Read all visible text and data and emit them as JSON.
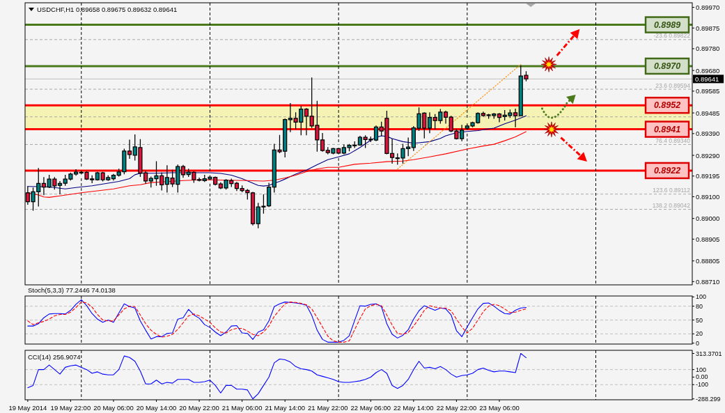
{
  "chart_data": [
    {
      "type": "candlestick",
      "title": "USDCHF,H1 0.89658 0.89675 0.89632 0.89641",
      "x": [
        "2014-05-19T14:00",
        "2014-05-19T15:00",
        "2014-05-19T16:00",
        "2014-05-19T17:00",
        "2014-05-19T18:00",
        "2014-05-19T19:00",
        "2014-05-19T20:00",
        "2014-05-19T21:00",
        "2014-05-19T22:00",
        "2014-05-19T23:00",
        "2014-05-20T00:00",
        "2014-05-20T01:00",
        "2014-05-20T02:00",
        "2014-05-20T03:00",
        "2014-05-20T04:00",
        "2014-05-20T05:00",
        "2014-05-20T06:00",
        "2014-05-20T07:00",
        "2014-05-20T08:00",
        "2014-05-20T09:00",
        "2014-05-20T10:00",
        "2014-05-20T11:00",
        "2014-05-20T12:00",
        "2014-05-20T13:00",
        "2014-05-20T14:00",
        "2014-05-20T15:00",
        "2014-05-20T16:00",
        "2014-05-20T17:00",
        "2014-05-20T18:00",
        "2014-05-20T19:00",
        "2014-05-20T20:00",
        "2014-05-20T21:00",
        "2014-05-20T22:00",
        "2014-05-20T23:00",
        "2014-05-21T00:00",
        "2014-05-21T01:00",
        "2014-05-21T02:00",
        "2014-05-21T03:00",
        "2014-05-21T04:00",
        "2014-05-21T05:00",
        "2014-05-21T06:00",
        "2014-05-21T07:00",
        "2014-05-21T08:00",
        "2014-05-21T09:00",
        "2014-05-21T10:00",
        "2014-05-21T11:00",
        "2014-05-21T12:00",
        "2014-05-21T13:00",
        "2014-05-21T14:00",
        "2014-05-21T15:00",
        "2014-05-21T16:00",
        "2014-05-21T17:00",
        "2014-05-21T18:00",
        "2014-05-21T19:00",
        "2014-05-21T20:00",
        "2014-05-21T21:00",
        "2014-05-21T22:00",
        "2014-05-21T23:00",
        "2014-05-22T00:00",
        "2014-05-22T01:00",
        "2014-05-22T02:00",
        "2014-05-22T03:00",
        "2014-05-22T04:00",
        "2014-05-22T05:00",
        "2014-05-22T06:00",
        "2014-05-22T07:00",
        "2014-05-22T08:00",
        "2014-05-22T09:00",
        "2014-05-22T10:00",
        "2014-05-22T11:00",
        "2014-05-22T12:00",
        "2014-05-22T13:00",
        "2014-05-22T14:00",
        "2014-05-22T15:00",
        "2014-05-22T16:00",
        "2014-05-22T17:00",
        "2014-05-22T18:00",
        "2014-05-22T19:00",
        "2014-05-22T20:00",
        "2014-05-22T21:00",
        "2014-05-22T22:00",
        "2014-05-22T23:00",
        "2014-05-23T00:00",
        "2014-05-23T01:00",
        "2014-05-23T02:00",
        "2014-05-23T03:00",
        "2014-05-23T04:00",
        "2014-05-23T05:00",
        "2014-05-23T06:00",
        "2014-05-23T07:00",
        "2014-05-23T08:00",
        "2014-05-23T09:00",
        "2014-05-23T10:00",
        "2014-05-23T11:00"
      ],
      "ohlc": [
        [
          0.89118,
          0.89147,
          0.89065,
          0.89077
        ],
        [
          0.89077,
          0.8914,
          0.89038,
          0.89123
        ],
        [
          0.89123,
          0.8923,
          0.89057,
          0.89161
        ],
        [
          0.89161,
          0.89188,
          0.89109,
          0.89144
        ],
        [
          0.89144,
          0.89199,
          0.89142,
          0.89181
        ],
        [
          0.89181,
          0.89188,
          0.89135,
          0.8915
        ],
        [
          0.89152,
          0.8917,
          0.89113,
          0.89161
        ],
        [
          0.89162,
          0.89199,
          0.89152,
          0.89181
        ],
        [
          0.89181,
          0.89208,
          0.89176,
          0.89204
        ],
        [
          0.89204,
          0.89224,
          0.89199,
          0.89213
        ],
        [
          0.89211,
          0.89218,
          0.89204,
          0.89212
        ],
        [
          0.89212,
          0.89215,
          0.89179,
          0.89181
        ],
        [
          0.89182,
          0.89196,
          0.89164,
          0.89178
        ],
        [
          0.89178,
          0.89212,
          0.89176,
          0.8921
        ],
        [
          0.8921,
          0.89212,
          0.89172,
          0.89178
        ],
        [
          0.89178,
          0.89196,
          0.89175,
          0.89188
        ],
        [
          0.89183,
          0.89203,
          0.89176,
          0.89199
        ],
        [
          0.89199,
          0.89227,
          0.89195,
          0.89214
        ],
        [
          0.89215,
          0.89319,
          0.89205,
          0.8931
        ],
        [
          0.8931,
          0.8936,
          0.89276,
          0.89294
        ],
        [
          0.89291,
          0.89384,
          0.89268,
          0.89329
        ],
        [
          0.89326,
          0.89363,
          0.89193,
          0.89208
        ],
        [
          0.8921,
          0.89217,
          0.89162,
          0.89172
        ],
        [
          0.89172,
          0.89191,
          0.89144,
          0.89184
        ],
        [
          0.89183,
          0.89261,
          0.89152,
          0.89196
        ],
        [
          0.89196,
          0.8921,
          0.89131,
          0.89155
        ],
        [
          0.89157,
          0.89243,
          0.89121,
          0.89188
        ],
        [
          0.89186,
          0.89222,
          0.89147,
          0.89159
        ],
        [
          0.89157,
          0.89246,
          0.89121,
          0.89239
        ],
        [
          0.89239,
          0.89244,
          0.89189,
          0.89201
        ],
        [
          0.89202,
          0.89227,
          0.89193,
          0.89213
        ],
        [
          0.89212,
          0.89215,
          0.89166,
          0.89179
        ],
        [
          0.89179,
          0.89186,
          0.89172,
          0.89178
        ],
        [
          0.89174,
          0.89199,
          0.8917,
          0.89183
        ],
        [
          0.89182,
          0.89196,
          0.89179,
          0.8919
        ],
        [
          0.89189,
          0.89191,
          0.89154,
          0.89157
        ],
        [
          0.89159,
          0.89164,
          0.89137,
          0.8914
        ],
        [
          0.8914,
          0.89179,
          0.89135,
          0.89176
        ],
        [
          0.89174,
          0.89181,
          0.89147,
          0.8916
        ],
        [
          0.89162,
          0.89166,
          0.89128,
          0.89138
        ],
        [
          0.89138,
          0.8915,
          0.89123,
          0.89128
        ],
        [
          0.89129,
          0.89133,
          0.89089,
          0.89119
        ],
        [
          0.89118,
          0.8912,
          0.8897,
          0.88976
        ],
        [
          0.88976,
          0.8907,
          0.88957,
          0.89053
        ],
        [
          0.89054,
          0.89109,
          0.89024,
          0.89056
        ],
        [
          0.89058,
          0.89162,
          0.89055,
          0.89144
        ],
        [
          0.89144,
          0.89341,
          0.89121,
          0.89315
        ],
        [
          0.89315,
          0.89382,
          0.89302,
          0.89307
        ],
        [
          0.89309,
          0.89457,
          0.89283,
          0.89455
        ],
        [
          0.89454,
          0.89528,
          0.89399,
          0.8946
        ],
        [
          0.8946,
          0.89486,
          0.89413,
          0.89443
        ],
        [
          0.89443,
          0.89515,
          0.89384,
          0.89503
        ],
        [
          0.89503,
          0.89505,
          0.89384,
          0.8947
        ],
        [
          0.8947,
          0.89646,
          0.89418,
          0.89425
        ],
        [
          0.89428,
          0.89539,
          0.89309,
          0.89361
        ],
        [
          0.89361,
          0.89391,
          0.89309,
          0.89312
        ],
        [
          0.89313,
          0.89326,
          0.89297,
          0.89303
        ],
        [
          0.893,
          0.89323,
          0.89297,
          0.89321
        ],
        [
          0.89321,
          0.89323,
          0.89297,
          0.893
        ],
        [
          0.893,
          0.89338,
          0.89297,
          0.89326
        ],
        [
          0.89326,
          0.8934,
          0.89311,
          0.89336
        ],
        [
          0.89335,
          0.89352,
          0.89326,
          0.89337
        ],
        [
          0.89338,
          0.89378,
          0.89336,
          0.89373
        ],
        [
          0.89373,
          0.8938,
          0.89326,
          0.89363
        ],
        [
          0.89362,
          0.89375,
          0.89353,
          0.89364
        ],
        [
          0.8936,
          0.89425,
          0.89357,
          0.8942
        ],
        [
          0.8942,
          0.89443,
          0.8938,
          0.89402
        ],
        [
          0.8946,
          0.89493,
          0.89297,
          0.89299
        ],
        [
          0.89299,
          0.89365,
          0.89254,
          0.8928
        ],
        [
          0.89277,
          0.89297,
          0.89249,
          0.89279
        ],
        [
          0.89278,
          0.89341,
          0.89254,
          0.89321
        ],
        [
          0.89321,
          0.8937,
          0.89288,
          0.89328
        ],
        [
          0.89326,
          0.89423,
          0.89312,
          0.89416
        ],
        [
          0.89415,
          0.89508,
          0.89404,
          0.89481
        ],
        [
          0.89484,
          0.89486,
          0.8937,
          0.89415
        ],
        [
          0.89415,
          0.89486,
          0.89394,
          0.89464
        ],
        [
          0.89464,
          0.89478,
          0.89412,
          0.8945
        ],
        [
          0.8945,
          0.89501,
          0.89438,
          0.89489
        ],
        [
          0.89489,
          0.89493,
          0.89438,
          0.89465
        ],
        [
          0.89466,
          0.8947,
          0.89399,
          0.89402
        ],
        [
          0.89402,
          0.89409,
          0.89365,
          0.89367
        ],
        [
          0.89367,
          0.89428,
          0.89357,
          0.89406
        ],
        [
          0.89415,
          0.89435,
          0.89409,
          0.89425
        ],
        [
          0.89425,
          0.89443,
          0.89421,
          0.8944
        ],
        [
          0.8944,
          0.89486,
          0.89438,
          0.89483
        ],
        [
          0.89483,
          0.89489,
          0.8947,
          0.89473
        ],
        [
          0.89474,
          0.89479,
          0.8946,
          0.89476
        ],
        [
          0.89473,
          0.89483,
          0.8946,
          0.8948
        ],
        [
          0.8948,
          0.89483,
          0.89444,
          0.89464
        ],
        [
          0.89468,
          0.89496,
          0.89452,
          0.89475
        ],
        [
          0.89473,
          0.89499,
          0.89464,
          0.89485
        ],
        [
          0.89486,
          0.89503,
          0.89421,
          0.89472
        ],
        [
          0.89472,
          0.89702,
          0.89472,
          0.89655
        ],
        [
          0.89658,
          0.89675,
          0.89632,
          0.89641
        ]
      ],
      "colors": [
        "#dc143c",
        "#008080",
        "#008080",
        "#dc143c",
        "#008080",
        "#dc143c",
        "#008080",
        "#008080",
        "#008080",
        "#008080",
        "#008080",
        "#dc143c",
        "#dc143c",
        "#008080",
        "#dc143c",
        "#008080",
        "#008080",
        "#008080",
        "#008080",
        "#dc143c",
        "#008080",
        "#dc143c",
        "#dc143c",
        "#008080",
        "#008080",
        "#dc143c",
        "#008080",
        "#dc143c",
        "#008080",
        "#dc143c",
        "#008080",
        "#dc143c",
        "#dc143c",
        "#008080",
        "#008080",
        "#dc143c",
        "#dc143c",
        "#008080",
        "#dc143c",
        "#dc143c",
        "#dc143c",
        "#dc143c",
        "#dc143c",
        "#008080",
        "#008080",
        "#008080",
        "#008080",
        "#dc143c",
        "#008080",
        "#008080",
        "#dc143c",
        "#008080",
        "#dc143c",
        "#dc143c",
        "#dc143c",
        "#dc143c",
        "#dc143c",
        "#008080",
        "#dc143c",
        "#008080",
        "#008080",
        "#008080",
        "#008080",
        "#dc143c",
        "#008080",
        "#008080",
        "#dc143c",
        "#dc143c",
        "#dc143c",
        "#008080",
        "#008080",
        "#008080",
        "#008080",
        "#008080",
        "#dc143c",
        "#008080",
        "#dc143c",
        "#008080",
        "#dc143c",
        "#dc143c",
        "#dc143c",
        "#008080",
        "#008080",
        "#008080",
        "#008080",
        "#dc143c",
        "#008080",
        "#008080",
        "#dc143c",
        "#008080",
        "#008080",
        "#dc143c",
        "#008080",
        "#dc143c"
      ],
      "series": [
        {
          "type": "line",
          "color": "#000080",
          "x": [
            "2014-05-19T14:00",
            "2014-05-19T17:00",
            "2014-05-19T19:00",
            "2014-05-19T21:00",
            "2014-05-19T23:00",
            "2014-05-20T02:00",
            "2014-05-20T05:00",
            "2014-05-20T07:00",
            "2014-05-20T09:00",
            "2014-05-20T10:00",
            "2014-05-20T11:00",
            "2014-05-20T14:00",
            "2014-05-20T17:00",
            "2014-05-20T20:00",
            "2014-05-21T00:00",
            "2014-05-21T02:00",
            "2014-05-21T04:00",
            "2014-05-21T06:00",
            "2014-05-21T08:00",
            "2014-05-21T09:00",
            "2014-05-21T10:00",
            "2014-05-21T11:00",
            "2014-05-21T12:00",
            "2014-05-21T13:00",
            "2014-05-21T14:00",
            "2014-05-21T16:00",
            "2014-05-21T18:00",
            "2014-05-21T20:00",
            "2014-05-21T22:00",
            "2014-05-22T00:00",
            "2014-05-22T02:00",
            "2014-05-22T04:00",
            "2014-05-22T06:00",
            "2014-05-22T07:00",
            "2014-05-22T08:00",
            "2014-05-22T09:00",
            "2014-05-22T10:00",
            "2014-05-22T12:00",
            "2014-05-22T14:00",
            "2014-05-22T15:00",
            "2014-05-22T17:00",
            "2014-05-22T19:00",
            "2014-05-22T20:00",
            "2014-05-22T22:00",
            "2014-05-23T00:00",
            "2014-05-23T02:00",
            "2014-05-23T04:00",
            "2014-05-23T05:00",
            "2014-05-23T07:00",
            "2014-05-23T09:00",
            "2014-05-23T11:00"
          ],
          "values": [
            0.89147,
            0.89146,
            0.89142,
            0.89136,
            0.89142,
            0.8915,
            0.89162,
            0.8917,
            0.89183,
            0.89201,
            0.89208,
            0.89208,
            0.8921,
            0.8921,
            0.8921,
            0.89207,
            0.89199,
            0.89183,
            0.89162,
            0.89152,
            0.89149,
            0.89152,
            0.89162,
            0.8917,
            0.89181,
            0.89204,
            0.89222,
            0.89247,
            0.8927,
            0.89283,
            0.89297,
            0.89326,
            0.8936,
            0.89373,
            0.8938,
            0.89377,
            0.89367,
            0.89353,
            0.89346,
            0.89348,
            0.89353,
            0.89368,
            0.8938,
            0.89394,
            0.894,
            0.89404,
            0.89412,
            0.89415,
            0.89435,
            0.89452,
            0.89472
          ]
        },
        {
          "type": "line",
          "color": "#ff0000",
          "x": [
            "2014-05-19T14:00",
            "2014-05-19T16:00",
            "2014-05-19T17:00",
            "2014-05-19T18:00",
            "2014-05-19T20:00",
            "2014-05-20T00:00",
            "2014-05-20T06:00",
            "2014-05-20T09:00",
            "2014-05-20T11:00",
            "2014-05-20T13:00",
            "2014-05-20T15:00",
            "2014-05-20T19:00",
            "2014-05-20T23:00",
            "2014-05-21T03:00",
            "2014-05-21T07:00",
            "2014-05-21T10:00",
            "2014-05-21T12:00",
            "2014-05-21T14:00",
            "2014-05-21T16:00",
            "2014-05-21T18:00",
            "2014-05-21T20:00",
            "2014-05-21T22:00",
            "2014-05-22T00:00",
            "2014-05-22T03:00",
            "2014-05-22T06:00",
            "2014-05-22T09:00",
            "2014-05-22T12:00",
            "2014-05-22T14:00",
            "2014-05-22T17:00",
            "2014-05-22T20:00",
            "2014-05-23T00:00",
            "2014-05-23T03:00",
            "2014-05-23T05:00",
            "2014-05-23T07:00",
            "2014-05-23T09:00",
            "2014-05-23T11:00"
          ],
          "values": [
            0.89118,
            0.89108,
            0.89099,
            0.89097,
            0.89104,
            0.89118,
            0.89136,
            0.8915,
            0.89155,
            0.89165,
            0.89168,
            0.89174,
            0.89178,
            0.89176,
            0.89174,
            0.89172,
            0.89176,
            0.89186,
            0.89199,
            0.89215,
            0.89228,
            0.89235,
            0.89235,
            0.89249,
            0.89254,
            0.89261,
            0.89264,
            0.8927,
            0.89283,
            0.89297,
            0.89319,
            0.89333,
            0.89341,
            0.89357,
            0.89375,
            0.89399
          ]
        },
        {
          "type": "line",
          "color": "#ff8c00",
          "line_style": "dotted",
          "x": [
            "2014-05-22T11:00",
            "2014-05-23T10:00"
          ],
          "values": [
            0.89227,
            0.89708
          ]
        }
      ],
      "xlim": [
        "2014-05-19T13:30",
        "2014-05-24T18:00"
      ],
      "ylim": [
        0.88695,
        0.89991
      ],
      "yticks": [
        {
          "value": 0.8871,
          "label": "0.88710"
        },
        0.88805,
        0.88905,
        {
          "value": 0.89,
          "label": "0.89000"
        },
        {
          "value": 0.891,
          "label": "0.89100"
        },
        0.89195,
        {
          "value": 0.8929,
          "label": "0.89290"
        },
        {
          "value": 0.8939,
          "label": "0.89390"
        },
        0.89485,
        0.89585,
        {
          "value": 0.8968,
          "label": "0.89680"
        },
        {
          "value": 0.8978,
          "label": "0.89780"
        },
        0.89875,
        {
          "value": 0.8997,
          "label": "0.89970"
        }
      ],
      "tick_labels": "y",
      "bands": [
        {
          "axis": "y",
          "from": 0.8941,
          "to": 0.8952,
          "color": "#f5f3b4"
        }
      ],
      "ref_lines": [
        {
          "axis": "y",
          "value": 0.89822,
          "label": "-23.6 0.89822",
          "color": "#a8a8a8",
          "line_style": "dashed"
        },
        {
          "axis": "y",
          "value": 0.89594,
          "label": "23.6 0.89594",
          "color": "#a8a8a8",
          "line_style": "dashed"
        },
        {
          "axis": "y",
          "value": 0.89467,
          "color": "#a8a8a8",
          "line_style": "dashed"
        },
        {
          "axis": "y",
          "value": 0.8934,
          "label": "76.4 0.89340",
          "color": "#a8a8a8",
          "line_style": "dashed"
        },
        {
          "axis": "y",
          "value": 0.89112,
          "label": "123.6 0.89112",
          "color": "#a8a8a8",
          "line_style": "dashed"
        },
        {
          "axis": "y",
          "value": 0.89042,
          "label": "138.2 0.89042",
          "color": "#a8a8a8",
          "line_style": "dashed"
        },
        {
          "axis": "y",
          "value": 0.89641,
          "label": "0.89641",
          "color": "#c0c0c0"
        },
        {
          "axis": "y",
          "value": 0.8989,
          "color": "#4b7a1c"
        },
        {
          "axis": "y",
          "value": 0.897,
          "color": "#4b7a1c"
        },
        {
          "axis": "y",
          "value": 0.8952,
          "color": "#ff0000"
        },
        {
          "axis": "y",
          "value": 0.8941,
          "color": "#ff0000"
        },
        {
          "axis": "y",
          "value": 0.8922,
          "color": "#ff0000"
        },
        {
          "axis": "x",
          "value": "2014-05-20T00:00",
          "color": "#000000",
          "line_style": "dashed"
        },
        {
          "axis": "x",
          "value": "2014-05-21T00:00",
          "color": "#000000",
          "line_style": "dashed"
        },
        {
          "axis": "x",
          "value": "2014-05-22T00:00",
          "color": "#000000",
          "line_style": "dashed"
        },
        {
          "axis": "x",
          "value": "2014-05-23T00:00",
          "color": "#000000",
          "line_style": "dashed"
        },
        {
          "axis": "x",
          "value": "2014-05-24T00:00",
          "color": "#000000",
          "line_style": "dashed"
        }
      ],
      "annotations": [
        {
          "text": "0.8989",
          "y": 0.8989
        },
        {
          "text": "0.8970",
          "y": 0.897
        },
        {
          "text": "0.8952",
          "y": 0.8952
        },
        {
          "text": "0.8941",
          "y": 0.8941
        },
        {
          "text": "0.8922",
          "y": 0.8922
        }
      ]
    },
    {
      "type": "line",
      "title": "Stoch(5,3,3) 77.2446 74.0138",
      "x": [
        "2014-05-19T14:00",
        "2014-05-19T15:00",
        "2014-05-19T16:00",
        "2014-05-19T17:00",
        "2014-05-19T18:00",
        "2014-05-19T19:00",
        "2014-05-19T20:00",
        "2014-05-19T21:00",
        "2014-05-19T22:00",
        "2014-05-19T23:00",
        "2014-05-20T00:00",
        "2014-05-20T01:00",
        "2014-05-20T02:00",
        "2014-05-20T03:00",
        "2014-05-20T04:00",
        "2014-05-20T05:00",
        "2014-05-20T06:00",
        "2014-05-20T07:00",
        "2014-05-20T08:00",
        "2014-05-20T09:00",
        "2014-05-20T10:00",
        "2014-05-20T11:00",
        "2014-05-20T12:00",
        "2014-05-20T13:00",
        "2014-05-20T14:00",
        "2014-05-20T15:00",
        "2014-05-20T16:00",
        "2014-05-20T17:00",
        "2014-05-20T18:00",
        "2014-05-20T19:00",
        "2014-05-20T20:00",
        "2014-05-20T21:00",
        "2014-05-20T22:00",
        "2014-05-20T23:00",
        "2014-05-21T00:00",
        "2014-05-21T01:00",
        "2014-05-21T02:00",
        "2014-05-21T03:00",
        "2014-05-21T04:00",
        "2014-05-21T05:00",
        "2014-05-21T06:00",
        "2014-05-21T07:00",
        "2014-05-21T08:00",
        "2014-05-21T09:00",
        "2014-05-21T10:00",
        "2014-05-21T11:00",
        "2014-05-21T12:00",
        "2014-05-21T13:00",
        "2014-05-21T14:00",
        "2014-05-21T15:00",
        "2014-05-21T16:00",
        "2014-05-21T17:00",
        "2014-05-21T18:00",
        "2014-05-21T19:00",
        "2014-05-21T20:00",
        "2014-05-21T21:00",
        "2014-05-21T22:00",
        "2014-05-21T23:00",
        "2014-05-22T00:00",
        "2014-05-22T01:00",
        "2014-05-22T02:00",
        "2014-05-22T03:00",
        "2014-05-22T04:00",
        "2014-05-22T05:00",
        "2014-05-22T06:00",
        "2014-05-22T07:00",
        "2014-05-22T08:00",
        "2014-05-22T09:00",
        "2014-05-22T10:00",
        "2014-05-22T11:00",
        "2014-05-22T12:00",
        "2014-05-22T13:00",
        "2014-05-22T14:00",
        "2014-05-22T15:00",
        "2014-05-22T16:00",
        "2014-05-22T17:00",
        "2014-05-22T18:00",
        "2014-05-22T19:00",
        "2014-05-22T20:00",
        "2014-05-22T21:00",
        "2014-05-22T22:00",
        "2014-05-22T23:00",
        "2014-05-23T00:00",
        "2014-05-23T01:00",
        "2014-05-23T02:00",
        "2014-05-23T03:00",
        "2014-05-23T04:00",
        "2014-05-23T05:00",
        "2014-05-23T06:00",
        "2014-05-23T07:00",
        "2014-05-23T08:00",
        "2014-05-23T09:00",
        "2014-05-23T10:00",
        "2014-05-23T11:00"
      ],
      "series": [
        {
          "color": "#0000ff",
          "values": [
            37,
            37,
            42,
            55,
            63,
            64,
            64,
            63,
            71,
            84,
            94,
            81,
            64,
            52,
            45,
            50,
            45,
            65,
            85,
            79,
            76,
            48,
            28,
            9,
            14,
            14,
            21,
            22,
            52,
            55,
            73,
            61,
            54,
            40,
            34,
            24,
            16,
            24,
            37,
            38,
            22,
            21,
            8,
            24,
            29,
            48,
            79,
            85,
            89,
            88,
            87,
            85,
            82,
            60,
            28,
            8,
            2,
            2,
            2,
            6,
            16,
            49,
            81,
            80,
            84,
            85,
            79,
            42,
            19,
            11,
            17,
            29,
            52,
            70,
            81,
            76,
            71,
            76,
            74,
            61,
            27,
            14,
            35,
            55,
            74,
            86,
            87,
            80,
            71,
            64,
            63,
            71,
            76,
            77.2446
          ]
        },
        {
          "color": "#ff0000",
          "line_style": "dashed",
          "values": [
            48,
            40,
            44,
            47,
            52,
            59,
            62,
            62,
            67,
            77,
            89,
            87,
            78,
            62,
            50,
            48,
            48,
            61,
            74,
            80,
            79,
            61,
            42,
            28,
            19,
            13,
            15,
            19,
            30,
            44,
            59,
            63,
            59,
            52,
            45,
            33,
            24,
            22,
            29,
            32,
            32,
            26,
            19,
            16,
            24,
            37,
            58,
            72,
            85,
            89,
            88,
            86,
            83,
            74,
            55,
            35,
            15,
            5,
            2,
            2,
            5,
            29,
            53,
            74,
            81,
            84,
            81,
            61,
            39,
            21,
            19,
            23,
            37,
            53,
            71,
            81,
            78,
            76,
            76,
            70,
            52,
            35,
            22,
            32,
            50,
            68,
            80,
            84,
            81,
            74,
            66,
            67,
            71,
            74.0138
          ]
        }
      ],
      "xlim": [
        "2014-05-19T13:30",
        "2014-05-24T18:00"
      ],
      "ylim": [
        -2,
        102
      ],
      "yticks": [
        0,
        20,
        50,
        80,
        100
      ],
      "tick_labels": "y",
      "ref_lines": [
        {
          "axis": "y",
          "value": 20,
          "color": "#c0c0c0",
          "line_style": "dashed"
        },
        {
          "axis": "y",
          "value": 50,
          "color": "#c0c0c0",
          "line_style": "dashed"
        },
        {
          "axis": "y",
          "value": 80,
          "color": "#c0c0c0",
          "line_style": "dashed"
        },
        {
          "axis": "x",
          "value": "2014-05-20T00:00",
          "color": "#000000",
          "line_style": "dashed"
        },
        {
          "axis": "x",
          "value": "2014-05-21T00:00",
          "color": "#000000",
          "line_style": "dashed"
        },
        {
          "axis": "x",
          "value": "2014-05-22T00:00",
          "color": "#000000",
          "line_style": "dashed"
        },
        {
          "axis": "x",
          "value": "2014-05-23T00:00",
          "color": "#000000",
          "line_style": "dashed"
        },
        {
          "axis": "x",
          "value": "2014-05-24T00:00",
          "color": "#000000",
          "line_style": "dashed"
        }
      ]
    },
    {
      "type": "line",
      "title": "CCI(14) 256.9074",
      "x": [
        "2014-05-19T14:00",
        "2014-05-19T15:00",
        "2014-05-19T16:00",
        "2014-05-19T17:00",
        "2014-05-19T18:00",
        "2014-05-19T19:00",
        "2014-05-19T20:00",
        "2014-05-19T21:00",
        "2014-05-19T22:00",
        "2014-05-19T23:00",
        "2014-05-20T00:00",
        "2014-05-20T01:00",
        "2014-05-20T02:00",
        "2014-05-20T03:00",
        "2014-05-20T04:00",
        "2014-05-20T05:00",
        "2014-05-20T06:00",
        "2014-05-20T07:00",
        "2014-05-20T08:00",
        "2014-05-20T09:00",
        "2014-05-20T10:00",
        "2014-05-20T11:00",
        "2014-05-20T12:00",
        "2014-05-20T13:00",
        "2014-05-20T14:00",
        "2014-05-20T15:00",
        "2014-05-20T16:00",
        "2014-05-20T17:00",
        "2014-05-20T18:00",
        "2014-05-20T19:00",
        "2014-05-20T20:00",
        "2014-05-20T21:00",
        "2014-05-20T22:00",
        "2014-05-20T23:00",
        "2014-05-21T00:00",
        "2014-05-21T01:00",
        "2014-05-21T02:00",
        "2014-05-21T03:00",
        "2014-05-21T04:00",
        "2014-05-21T05:00",
        "2014-05-21T06:00",
        "2014-05-21T07:00",
        "2014-05-21T08:00",
        "2014-05-21T09:00",
        "2014-05-21T10:00",
        "2014-05-21T11:00",
        "2014-05-21T12:00",
        "2014-05-21T13:00",
        "2014-05-21T14:00",
        "2014-05-21T15:00",
        "2014-05-21T16:00",
        "2014-05-21T17:00",
        "2014-05-21T18:00",
        "2014-05-21T19:00",
        "2014-05-21T20:00",
        "2014-05-21T21:00",
        "2014-05-21T22:00",
        "2014-05-21T23:00",
        "2014-05-22T00:00",
        "2014-05-22T01:00",
        "2014-05-22T02:00",
        "2014-05-22T03:00",
        "2014-05-22T04:00",
        "2014-05-22T05:00",
        "2014-05-22T06:00",
        "2014-05-22T07:00",
        "2014-05-22T08:00",
        "2014-05-22T09:00",
        "2014-05-22T10:00",
        "2014-05-22T11:00",
        "2014-05-22T12:00",
        "2014-05-22T13:00",
        "2014-05-22T14:00",
        "2014-05-22T15:00",
        "2014-05-22T16:00",
        "2014-05-22T17:00",
        "2014-05-22T18:00",
        "2014-05-22T19:00",
        "2014-05-22T20:00",
        "2014-05-22T21:00",
        "2014-05-22T22:00",
        "2014-05-22T23:00",
        "2014-05-23T00:00",
        "2014-05-23T01:00",
        "2014-05-23T02:00",
        "2014-05-23T03:00",
        "2014-05-23T04:00",
        "2014-05-23T05:00",
        "2014-05-23T06:00",
        "2014-05-23T07:00",
        "2014-05-23T08:00",
        "2014-05-23T09:00",
        "2014-05-23T10:00",
        "2014-05-23T11:00"
      ],
      "series": [
        {
          "color": "#0000ff",
          "values": [
            -140,
            -110,
            100,
            100,
            160,
            100,
            40,
            130,
            150,
            160,
            130,
            100,
            50,
            70,
            40,
            30,
            30,
            100,
            280,
            260,
            210,
            80,
            -90,
            -90,
            -40,
            -90,
            -70,
            -80,
            -30,
            -30,
            -30,
            -70,
            -70,
            -60,
            -40,
            -110,
            -210,
            -110,
            -110,
            -160,
            -160,
            -170,
            -288.299,
            -220,
            -110,
            0,
            190,
            240,
            230,
            200,
            140,
            110,
            100,
            80,
            30,
            10,
            -10,
            -30,
            -60,
            -70,
            -70,
            -60,
            -50,
            -30,
            0,
            60,
            100,
            50,
            -110,
            -150,
            -110,
            -30,
            100,
            210,
            120,
            130,
            110,
            140,
            100,
            40,
            0,
            20,
            30,
            50,
            100,
            120,
            90,
            70,
            80,
            80,
            70,
            60,
            313.3701,
            256.9074
          ]
        }
      ],
      "xlim": [
        "2014-05-19T13:30",
        "2014-05-24T18:00"
      ],
      "ylim": [
        -300,
        355
      ],
      "yticks": [
        -288.299,
        -100,
        {
          "value": 0,
          "label": "0.00"
        },
        100,
        313.3701
      ],
      "xticks": [
        {
          "value": "2014-05-19T14:00",
          "label": "19 May 2014"
        },
        {
          "value": "2014-05-19T22:00",
          "label": "19 May 22:00"
        },
        {
          "value": "2014-05-20T06:00",
          "label": "20 May 06:00"
        },
        {
          "value": "2014-05-20T14:00",
          "label": "20 May 14:00"
        },
        {
          "value": "2014-05-20T22:00",
          "label": "20 May 22:00"
        },
        {
          "value": "2014-05-21T06:00",
          "label": "21 May 06:00"
        },
        {
          "value": "2014-05-21T14:00",
          "label": "21 May 14:00"
        },
        {
          "value": "2014-05-21T22:00",
          "label": "21 May 22:00"
        },
        {
          "value": "2014-05-22T06:00",
          "label": "22 May 06:00"
        },
        {
          "value": "2014-05-22T14:00",
          "label": "22 May 14:00"
        },
        {
          "value": "2014-05-22T22:00",
          "label": "22 May 22:00"
        },
        {
          "value": "2014-05-23T06:00",
          "label": "23 May 06:00"
        }
      ],
      "ref_lines": [
        {
          "axis": "y",
          "value": 100,
          "color": "#c0c0c0",
          "line_style": "dashed"
        },
        {
          "axis": "y",
          "value": -100,
          "color": "#c0c0c0",
          "line_style": "dashed"
        },
        {
          "axis": "x",
          "value": "2014-05-20T00:00",
          "color": "#000000",
          "line_style": "dashed"
        },
        {
          "axis": "x",
          "value": "2014-05-21T00:00",
          "color": "#000000",
          "line_style": "dashed"
        },
        {
          "axis": "x",
          "value": "2014-05-22T00:00",
          "color": "#000000",
          "line_style": "dashed"
        },
        {
          "axis": "x",
          "value": "2014-05-23T00:00",
          "color": "#000000",
          "line_style": "dashed"
        },
        {
          "axis": "x",
          "value": "2014-05-24T00:00",
          "color": "#000000",
          "line_style": "dashed"
        }
      ]
    }
  ]
}
